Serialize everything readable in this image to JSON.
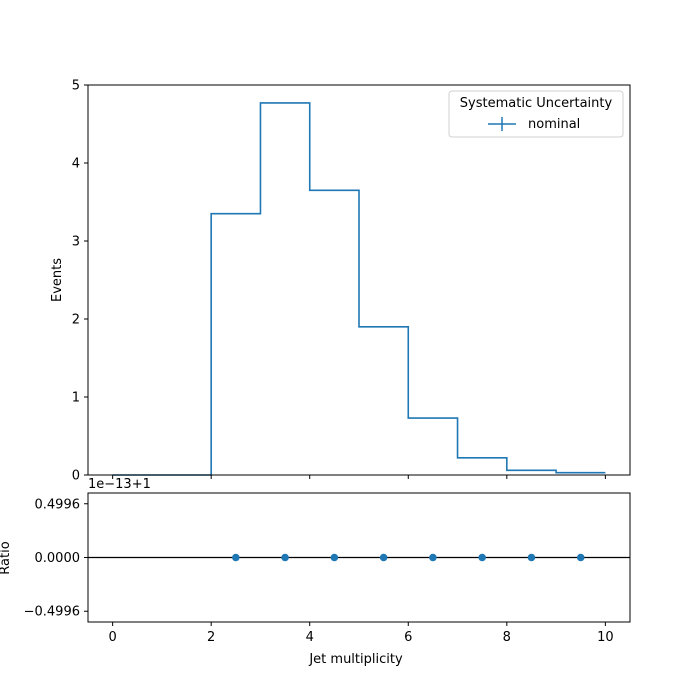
{
  "chart_data": [
    {
      "type": "histogram-step",
      "xlabel": "",
      "ylabel": "Events",
      "xlim": [
        -0.5,
        10.5
      ],
      "ylim": [
        0,
        5
      ],
      "x_ticks": [
        0,
        2,
        4,
        6,
        8,
        10
      ],
      "y_ticks": [
        "0",
        "1",
        "2",
        "3",
        "4",
        "5"
      ],
      "bin_edges": [
        0,
        1,
        2,
        3,
        4,
        5,
        6,
        7,
        8,
        9,
        10
      ],
      "series": [
        {
          "name": "nominal",
          "color": "#1f77b4",
          "values": [
            0.0,
            0.0,
            3.35,
            4.77,
            3.65,
            1.9,
            0.73,
            0.22,
            0.06,
            0.03
          ]
        }
      ],
      "legend": {
        "title": "Systematic Uncertainty",
        "placement": "top-right",
        "entries": [
          "nominal"
        ]
      }
    },
    {
      "type": "scatter",
      "xlabel": "Jet multiplicity",
      "ylabel": "Ratio",
      "xlim": [
        -0.5,
        10.5
      ],
      "ylim": [
        -0.5996,
        0.5996
      ],
      "offset_text": "1e−13+1",
      "x_ticks": [
        "0",
        "2",
        "4",
        "6",
        "8",
        "10"
      ],
      "y_ticks": [
        {
          "value": 0.4996,
          "label": "0.4996"
        },
        {
          "value": 0.0,
          "label": "0.0000"
        },
        {
          "value": -0.4996,
          "label": "−0.4996"
        }
      ],
      "reference_line": 0.0,
      "series": [
        {
          "color": "#1f77b4",
          "x": [
            2.5,
            3.5,
            4.5,
            5.5,
            6.5,
            7.5,
            8.5,
            9.5
          ],
          "y": [
            0,
            0,
            0,
            0,
            0,
            0,
            0,
            0
          ]
        }
      ]
    }
  ]
}
